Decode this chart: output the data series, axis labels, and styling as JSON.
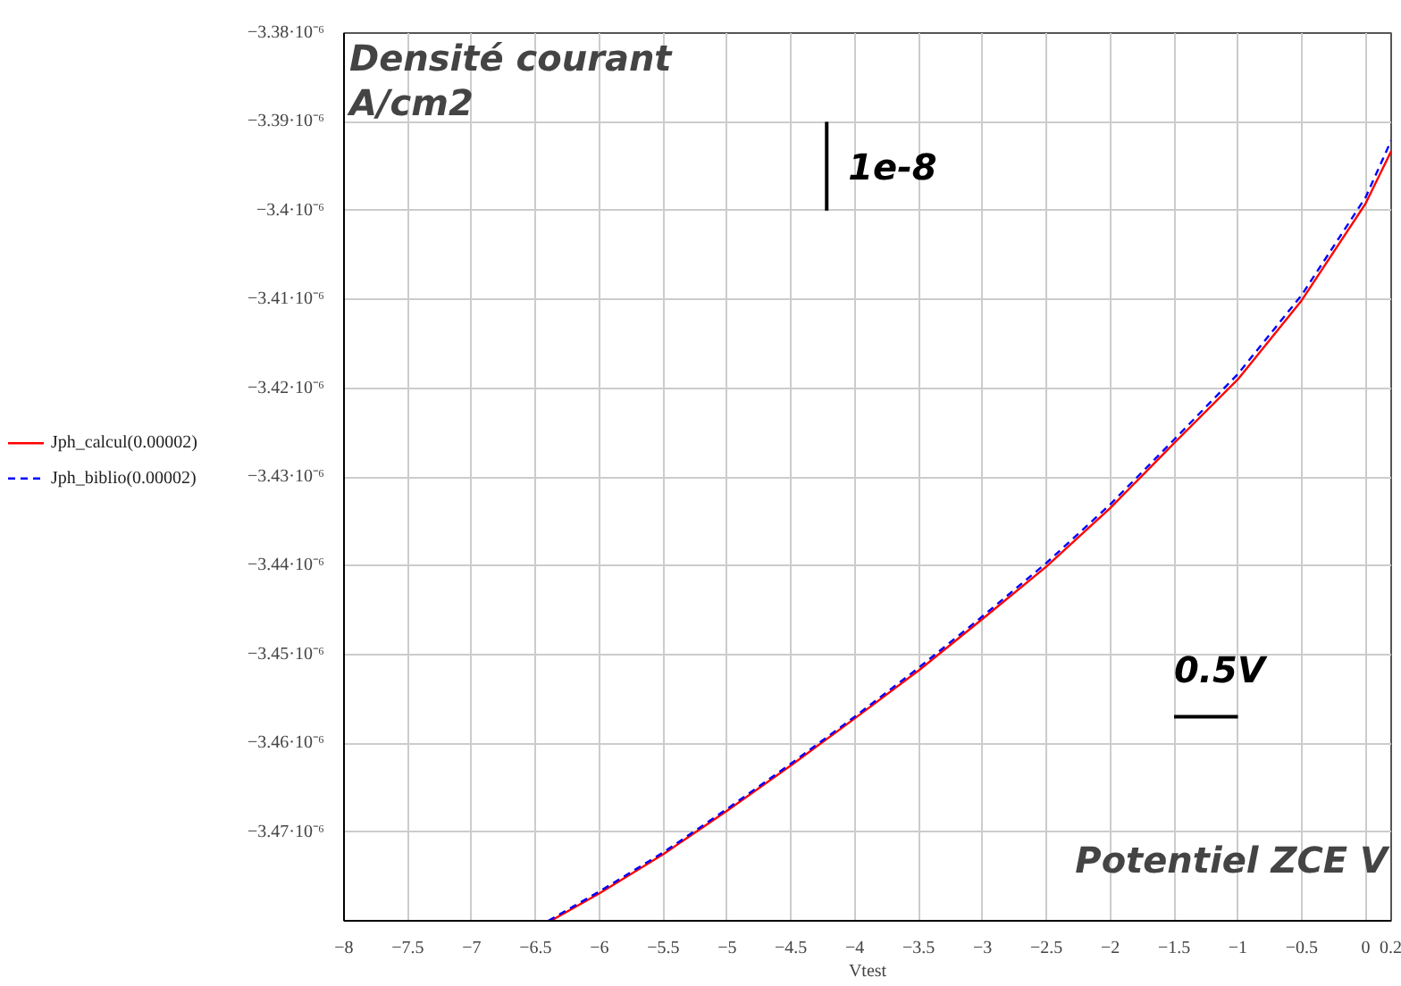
{
  "chart_data": {
    "type": "line",
    "xlabel": "Vtest",
    "annotations": [
      "Densité courant\nA/cm2",
      "Potentiel ZCE V"
    ],
    "xlim": [
      -8,
      0.2
    ],
    "ylim": [
      -3.48e-06,
      -3.38e-06
    ],
    "xticks": [
      {
        "value": -8,
        "label": "−8"
      },
      {
        "value": -7.5,
        "label": "−7.5"
      },
      {
        "value": -7,
        "label": "−7"
      },
      {
        "value": -6.5,
        "label": "−6.5"
      },
      {
        "value": -6,
        "label": "−6"
      },
      {
        "value": -5.5,
        "label": "−5.5"
      },
      {
        "value": -5,
        "label": "−5"
      },
      {
        "value": -4.5,
        "label": "−4.5"
      },
      {
        "value": -4,
        "label": "−4"
      },
      {
        "value": -3.5,
        "label": "−3.5"
      },
      {
        "value": -3,
        "label": "−3"
      },
      {
        "value": -2.5,
        "label": "−2.5"
      },
      {
        "value": -2,
        "label": "−2"
      },
      {
        "value": -1.5,
        "label": "−1.5"
      },
      {
        "value": -1,
        "label": "−1"
      },
      {
        "value": -0.5,
        "label": "−0.5"
      },
      {
        "value": 0,
        "label": "0"
      },
      {
        "value": 0.2,
        "label": "0.2"
      }
    ],
    "yticks": [
      {
        "value": -3.38e-06,
        "label": "−3.38·10⁻⁶"
      },
      {
        "value": -3.39e-06,
        "label": "−3.39·10⁻⁶"
      },
      {
        "value": -3.4e-06,
        "label": "−3.4·10⁻⁶"
      },
      {
        "value": -3.41e-06,
        "label": "−3.41·10⁻⁶"
      },
      {
        "value": -3.42e-06,
        "label": "−3.42·10⁻⁶"
      },
      {
        "value": -3.43e-06,
        "label": "−3.43·10⁻⁶"
      },
      {
        "value": -3.44e-06,
        "label": "−3.44·10⁻⁶"
      },
      {
        "value": -3.45e-06,
        "label": "−3.45·10⁻⁶"
      },
      {
        "value": -3.46e-06,
        "label": "−3.46·10⁻⁶"
      },
      {
        "value": -3.47e-06,
        "label": "−3.47·10⁻⁶"
      },
      {
        "value": -3.48e-06,
        "label": null
      }
    ],
    "grid": true,
    "legend": "left",
    "series": [
      {
        "name": "Jph_calcul(0.00002)",
        "color": "#ff0000",
        "line_style": "solid",
        "x": [
          -6.38,
          -6,
          -5.5,
          -5,
          -4.5,
          -4,
          -3.5,
          -3,
          -2.5,
          -2,
          -1.5,
          -1,
          -0.5,
          0,
          0.2
        ],
        "values": [
          -3.48e-06,
          -3.4769e-06,
          -3.4725e-06,
          -3.4676e-06,
          -3.4625e-06,
          -3.4572e-06,
          -3.4518e-06,
          -3.446e-06,
          -3.4401e-06,
          -3.4335e-06,
          -3.4262e-06,
          -3.419e-06,
          -3.4101e-06,
          -3.3992e-06,
          -3.3933e-06
        ]
      },
      {
        "name": "Jph_biblio(0.00002)",
        "color": "#0000ff",
        "line_style": "dashed",
        "x": [
          -6.4,
          -6,
          -5.5,
          -5,
          -4.5,
          -4,
          -3.5,
          -3,
          -2.5,
          -2,
          -1.5,
          -1,
          -0.5,
          0,
          0.2
        ],
        "values": [
          -3.48e-06,
          -3.4767e-06,
          -3.4723e-06,
          -3.4674e-06,
          -3.4623e-06,
          -3.457e-06,
          -3.4515e-06,
          -3.4457e-06,
          -3.4397e-06,
          -3.4331e-06,
          -3.4258e-06,
          -3.4184e-06,
          -3.4095e-06,
          -3.3985e-06,
          -3.3921e-06
        ]
      },
      {
        "name": "1e-8",
        "color": "#000000",
        "line_style": "solid",
        "x": [
          -4.22,
          -4.22
        ],
        "values": [
          -3.39e-06,
          -3.4e-06
        ]
      },
      {
        "name": "0.5V",
        "color": "#000000",
        "line_style": "solid",
        "x": [
          -1.5,
          -1.0
        ],
        "values": [
          -3.457e-06,
          -3.457e-06
        ]
      }
    ]
  }
}
